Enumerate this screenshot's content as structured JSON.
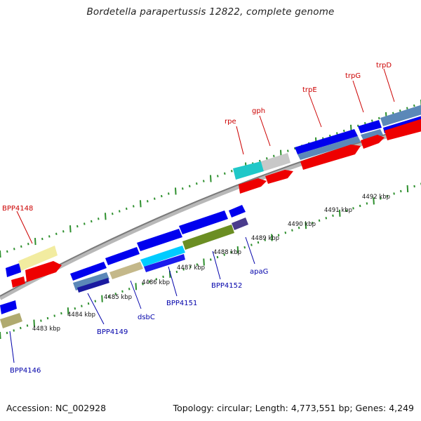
{
  "title": "Bordetella parapertussis 12822, complete genome",
  "accession": "Accession: NC_002928",
  "summary": "Topology: circular; Length: 4,773,551 bp; Genes: 4,249",
  "colors": {
    "forward_gene": "#ff0000",
    "reverse_gene": "#0000ee",
    "forward_label": "#cc0000",
    "reverse_label": "#0000aa",
    "tick": "#2d8f2d",
    "backbone": "#808080"
  },
  "scale_labels": [
    "4483 kbp",
    "4484 kbp",
    "4485 kbp",
    "4486 kbp",
    "4487 kbp",
    "4488 kbp",
    "4489 kbp",
    "4490 kbp",
    "4491 kbp",
    "4492 kbp"
  ],
  "forward_genes": [
    {
      "name": "BPP4148",
      "color": "#cc0000"
    },
    {
      "name": "rpe",
      "color": "#cc0000"
    },
    {
      "name": "gph",
      "color": "#cc0000"
    },
    {
      "name": "trpE",
      "color": "#cc0000"
    },
    {
      "name": "trpG",
      "color": "#cc0000"
    },
    {
      "name": "trpD",
      "color": "#cc0000"
    }
  ],
  "reverse_genes": [
    {
      "name": "BPP4146",
      "color": "#0000aa"
    },
    {
      "name": "BPP4149",
      "color": "#0000aa"
    },
    {
      "name": "dsbC",
      "color": "#0000aa"
    },
    {
      "name": "BPP4151",
      "color": "#0000aa"
    },
    {
      "name": "BPP4152",
      "color": "#0000aa"
    },
    {
      "name": "apaG",
      "color": "#0000aa"
    }
  ]
}
